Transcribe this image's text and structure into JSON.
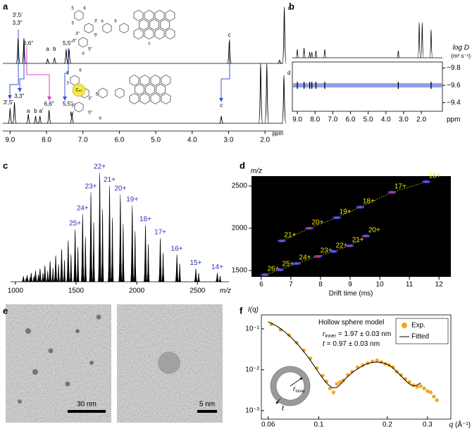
{
  "figure": {
    "a": {
      "letter": "a",
      "xlim": [
        9.2,
        1.5
      ],
      "xticks": [
        {
          "value": 9,
          "label": "9.0"
        },
        {
          "value": 8,
          "label": "8.0"
        },
        {
          "value": 7,
          "label": "7.0"
        },
        {
          "value": 6,
          "label": "6.0"
        },
        {
          "value": 5,
          "label": "5.0"
        },
        {
          "value": 4,
          "label": "4.0"
        },
        {
          "value": 3,
          "label": "3.0"
        },
        {
          "value": 2,
          "label": "2.0"
        }
      ],
      "xlabel": "ppm",
      "spectra": [
        {
          "ppm": [
            8.78,
            8.62,
            7.97,
            7.78,
            7.46,
            7.38,
            2.98,
            1.6,
            1.47
          ],
          "intensity": [
            45,
            45,
            8,
            10,
            25,
            25,
            40,
            6,
            100
          ],
          "labels": [
            {
              "text": "3′,5′",
              "ppm": 8.8
            },
            {
              "text": "3,3′′",
              "ppm": 8.8
            },
            {
              "text": "6,6′′",
              "ppm": 8.5
            },
            {
              "text": "a",
              "ppm": 7.97
            },
            {
              "text": "b",
              "ppm": 7.78
            },
            {
              "text": "5,5′′",
              "ppm": 7.42
            },
            {
              "text": "c",
              "ppm": 2.98
            },
            {
              "text": "d",
              "ppm": 1.47
            }
          ]
        },
        {
          "ppm": [
            9.0,
            8.88,
            8.5,
            8.3,
            8.18,
            7.93,
            7.3,
            3.2,
            2.12,
            1.95,
            1.48
          ],
          "intensity": [
            25,
            35,
            15,
            12,
            12,
            22,
            18,
            12,
            100,
            100,
            80
          ],
          "labels": [
            {
              "text": "3′,5′",
              "ppm": 9.05
            },
            {
              "text": "3,3′′",
              "ppm": 8.75
            },
            {
              "text": "a",
              "ppm": 8.5
            },
            {
              "text": "b",
              "ppm": 8.3
            },
            {
              "text": "a′",
              "ppm": 8.15
            },
            {
              "text": "6,6′′",
              "ppm": 7.93
            },
            {
              "text": "5,5′′",
              "ppm": 7.42
            },
            {
              "text": "b′",
              "ppm": 7.3
            },
            {
              "text": "c",
              "ppm": 3.2
            },
            {
              "text": "d",
              "ppm": 1.48
            }
          ]
        }
      ],
      "molecules": [
        {
          "labels": [
            "3",
            "5",
            "6",
            "3′",
            "5′",
            "a",
            "b",
            "c",
            "d",
            "6′′",
            "3′′",
            "5′′"
          ]
        },
        {
          "labels": [
            "5",
            "3",
            "6",
            "5′",
            "3′′",
            "6′′",
            "5′′",
            "d"
          ],
          "guest": "C₆₀"
        }
      ]
    },
    "b": {
      "letter": "b",
      "xlim": [
        9.28,
        0.81
      ],
      "xticks": [
        {
          "value": 9,
          "label": "9.0"
        },
        {
          "value": 8,
          "label": "8.0"
        },
        {
          "value": 7,
          "label": "7.0"
        },
        {
          "value": 6,
          "label": "6.0"
        },
        {
          "value": 5,
          "label": "5.0"
        },
        {
          "value": 4,
          "label": "4.0"
        },
        {
          "value": 3,
          "label": "3.0"
        },
        {
          "value": 2,
          "label": "2.0"
        }
      ],
      "xlabel": "ppm",
      "spectrum": {
        "ppm": [
          9.0,
          8.62,
          8.3,
          8.18,
          7.95,
          7.45,
          3.3,
          2.12,
          1.95,
          1.45
        ],
        "intensity": [
          12,
          14,
          8,
          8,
          10,
          12,
          10,
          50,
          50,
          40
        ]
      },
      "ylim": [
        -9.87,
        -9.3
      ],
      "yticks": [
        {
          "value": -9.8,
          "label": "−9.8"
        },
        {
          "value": -9.6,
          "label": "−9.6"
        },
        {
          "value": -9.4,
          "label": "−9.4"
        }
      ],
      "ylabel": "log D",
      "yunit": "(m² s⁻¹)",
      "band": -9.6,
      "band_color": "#8f9ce6",
      "dosy": {
        "ppm": [
          9.0,
          8.62,
          8.3,
          8.18,
          7.95,
          7.45,
          3.3,
          1.45
        ],
        "logD": [
          -9.6,
          -9.6,
          -9.6,
          -9.6,
          -9.6,
          -9.6,
          -9.6,
          -9.6
        ]
      }
    },
    "c": {
      "letter": "c",
      "xlim": [
        960,
        2760
      ],
      "xticks": [
        1000,
        1500,
        2000,
        2500
      ],
      "xlabel": "m/z",
      "ylim": [
        0,
        100
      ],
      "label_color": "#2a35b0",
      "peaks": {
        "mz": [
          1066,
          1097,
          1130,
          1166,
          1203,
          1243,
          1286,
          1332,
          1381,
          1435,
          1492,
          1554,
          1622,
          1695,
          1776,
          1865,
          1963,
          2072,
          2194,
          2331,
          2487,
          2664
        ],
        "intensity": [
          5,
          6,
          8,
          10,
          12,
          15,
          19,
          24,
          30,
          38,
          48,
          62,
          82,
          100,
          88,
          80,
          70,
          52,
          40,
          25,
          12,
          8
        ],
        "labels": [
          null,
          null,
          null,
          null,
          null,
          null,
          null,
          null,
          null,
          null,
          "25+",
          "24+",
          "23+",
          "22+",
          "21+",
          "20+",
          "19+",
          "18+",
          "17+",
          "16+",
          "15+",
          "14+"
        ]
      }
    },
    "d": {
      "letter": "d",
      "xlim": [
        5.67,
        12.4
      ],
      "ylim": [
        1425,
        2617
      ],
      "xticks": [
        6,
        7,
        8,
        9,
        10,
        11,
        12
      ],
      "yticks": [
        1500,
        2000,
        2500
      ],
      "xlabel": "Drift time (ms)",
      "ylabel": "m/z",
      "label_color": "#f2e600",
      "series": [
        {
          "x": [
            6.69,
            7.62,
            8.55,
            9.34,
            10.41,
            11.57
          ],
          "y": [
            1850,
            2000,
            2125,
            2250,
            2425,
            2550
          ],
          "labels": [
            "21+",
            "20+",
            "19+",
            "18+",
            "17+",
            "16+"
          ]
        },
        {
          "x": [
            6.12,
            6.62,
            7.19,
            7.91,
            8.43,
            8.98,
            9.53
          ],
          "y": [
            1450,
            1508,
            1583,
            1667,
            1725,
            1792,
            1908
          ],
          "labels": [
            "26+",
            "25+",
            "24+",
            "23+",
            "22+",
            "21+",
            "20+"
          ]
        }
      ]
    },
    "e": {
      "letter": "e",
      "scale_bars": [
        "30 nm",
        "5 nm"
      ]
    },
    "f": {
      "letter": "f",
      "xscale": "log",
      "yscale": "log",
      "xlim": [
        0.056,
        0.38
      ],
      "ylim": [
        0.00062,
        0.22
      ],
      "xticks": [
        0.06,
        0.1,
        0.2,
        0.3
      ],
      "yticks": [
        {
          "value": 0.1,
          "label": "10⁻¹"
        },
        {
          "value": 0.01,
          "label": "10⁻²"
        },
        {
          "value": 0.001,
          "label": "10⁻³"
        }
      ],
      "xlabel_symbol": "q",
      "xlabel_unit": "(Å⁻¹)",
      "ylabel": "I(q)",
      "annotation": {
        "title": "Hollow sphere model",
        "r_symbol": "r",
        "r_subscript": "inner",
        "r_value": "= 1.97 ± 0.03 nm",
        "t_symbol": "t",
        "t_value": "= 0.97 ± 0.03 nm"
      },
      "inset": {
        "r_symbol": "r",
        "r_subscript": "inner",
        "t_symbol": "t"
      },
      "series": [
        {
          "name": "Exp.",
          "color": "#f4a31c",
          "q": [
            0.062,
            0.068,
            0.074,
            0.08,
            0.086,
            0.092,
            0.098,
            0.104,
            0.108,
            0.112,
            0.116,
            0.12,
            0.124,
            0.128,
            0.134,
            0.14,
            0.148,
            0.156,
            0.164,
            0.172,
            0.18,
            0.188,
            0.196,
            0.204,
            0.212,
            0.22,
            0.23,
            0.24,
            0.25,
            0.26,
            0.27,
            0.28,
            0.29,
            0.3,
            0.31,
            0.32,
            0.33
          ],
          "I": [
            0.13,
            0.095,
            0.07,
            0.046,
            0.03,
            0.019,
            0.011,
            0.0072,
            0.0052,
            0.0035,
            0.0028,
            0.0045,
            0.005,
            0.0055,
            0.0075,
            0.009,
            0.0115,
            0.013,
            0.0145,
            0.016,
            0.017,
            0.0155,
            0.014,
            0.013,
            0.0115,
            0.009,
            0.0075,
            0.006,
            0.005,
            0.0042,
            0.0038,
            0.004,
            0.0035,
            0.003,
            0.0028,
            0.0022,
            0.0018
          ]
        },
        {
          "name": "Fitted",
          "color": "#000000",
          "q": [
            0.06,
            0.065,
            0.07,
            0.075,
            0.08,
            0.085,
            0.09,
            0.095,
            0.1,
            0.105,
            0.11,
            0.115,
            0.12,
            0.125,
            0.13,
            0.14,
            0.15,
            0.16,
            0.17,
            0.18,
            0.19,
            0.2,
            0.21,
            0.22,
            0.23,
            0.24,
            0.25,
            0.26,
            0.27,
            0.28
          ],
          "I": [
            0.15,
            0.12,
            0.09,
            0.065,
            0.045,
            0.03,
            0.02,
            0.013,
            0.0085,
            0.0058,
            0.0043,
            0.0036,
            0.0037,
            0.0045,
            0.0058,
            0.0085,
            0.011,
            0.0135,
            0.015,
            0.0155,
            0.015,
            0.0135,
            0.0115,
            0.009,
            0.007,
            0.0055,
            0.0045,
            0.004,
            0.0042,
            0.0048
          ]
        }
      ]
    }
  }
}
